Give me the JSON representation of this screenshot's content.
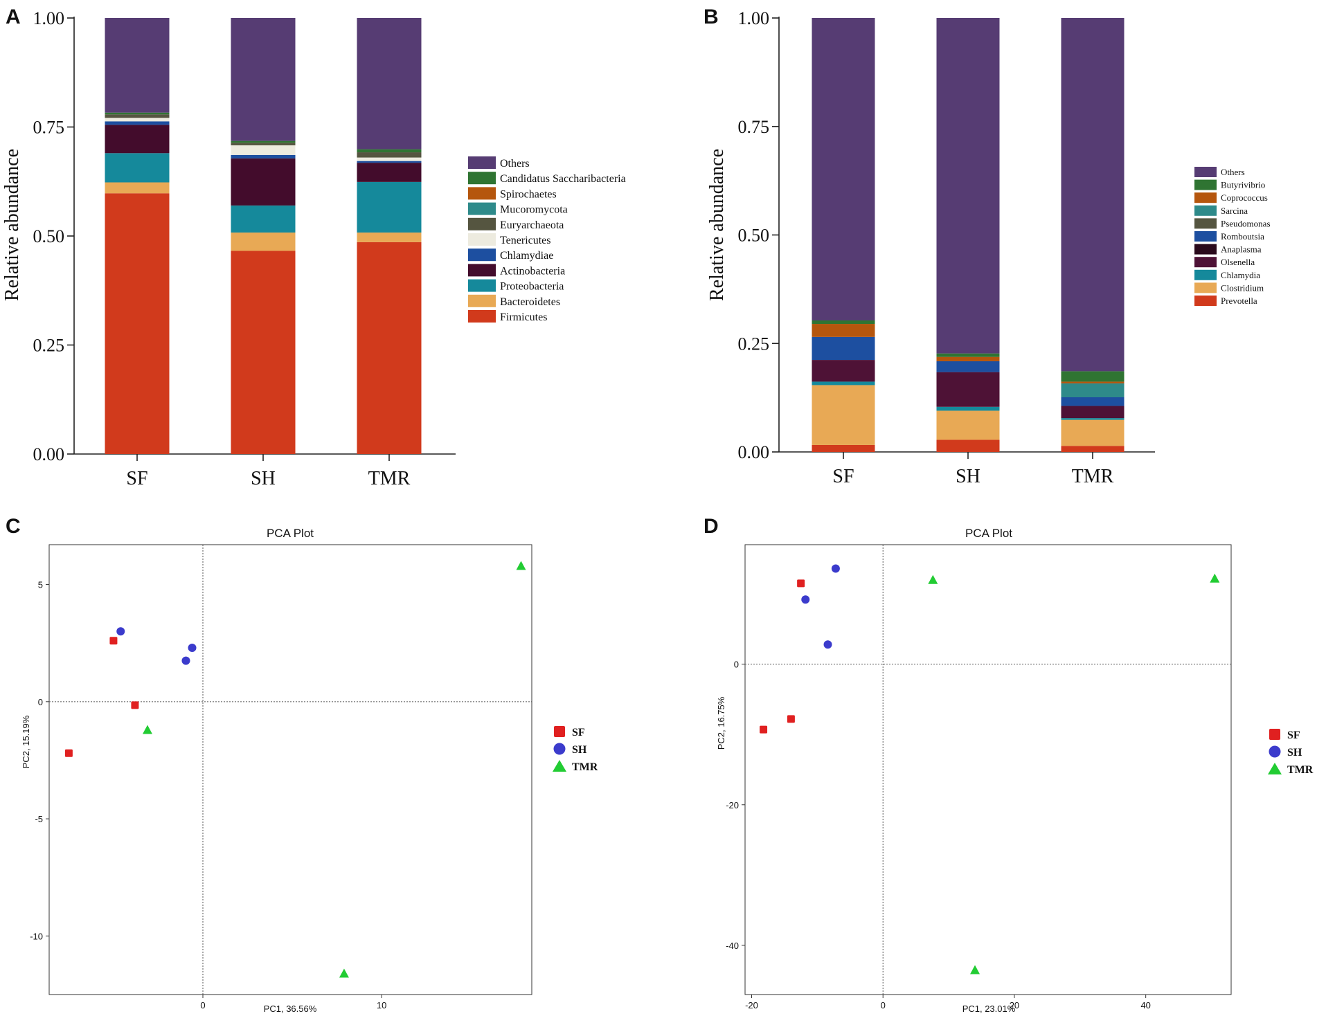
{
  "chart_data": [
    {
      "panel": "A",
      "type": "bar",
      "stacked": true,
      "title": "",
      "xlabel": "",
      "ylabel": "Relative abundance",
      "ylim": [
        0,
        1
      ],
      "yticks": [
        "0.00",
        "0.25",
        "0.50",
        "0.75",
        "1.00"
      ],
      "categories": [
        "SF",
        "SH",
        "TMR"
      ],
      "series": [
        {
          "name": "Firmicutes",
          "color": "#D13A1C",
          "values": [
            0.598,
            0.466,
            0.486
          ]
        },
        {
          "name": "Bacteroidetes",
          "color": "#E8A955",
          "values": [
            0.025,
            0.042,
            0.022
          ]
        },
        {
          "name": "Proteobacteria",
          "color": "#15899B",
          "values": [
            0.067,
            0.062,
            0.116
          ]
        },
        {
          "name": "Actinobacteria",
          "color": "#430C2C",
          "values": [
            0.065,
            0.108,
            0.044
          ]
        },
        {
          "name": "Chlamydiae",
          "color": "#1D4FA0",
          "values": [
            0.008,
            0.008,
            0.004
          ]
        },
        {
          "name": "Tenericutes",
          "color": "#EDEBDF",
          "values": [
            0.008,
            0.022,
            0.008
          ]
        },
        {
          "name": "Euryarchaeota",
          "color": "#555540",
          "values": [
            0.008,
            0.006,
            0.012
          ]
        },
        {
          "name": "Mucoromycota",
          "color": "#2E8A8A",
          "values": [
            0.0,
            0.0,
            0.0
          ]
        },
        {
          "name": "Spirochaetes",
          "color": "#B5560D",
          "values": [
            0.0,
            0.0,
            0.0
          ]
        },
        {
          "name": "Candidatus Saccharibacteria",
          "color": "#2F7432",
          "values": [
            0.004,
            0.004,
            0.007
          ]
        },
        {
          "name": "Others",
          "color": "#563C73",
          "values": [
            0.217,
            0.282,
            0.301
          ]
        }
      ],
      "legend": "right"
    },
    {
      "panel": "B",
      "type": "bar",
      "stacked": true,
      "title": "",
      "xlabel": "",
      "ylabel": "Relative abundance",
      "ylim": [
        0,
        1
      ],
      "yticks": [
        "0.00",
        "0.25",
        "0.50",
        "0.75",
        "1.00"
      ],
      "categories": [
        "SF",
        "SH",
        "TMR"
      ],
      "series": [
        {
          "name": "Prevotella",
          "color": "#D13A1C",
          "values": [
            0.016,
            0.028,
            0.014
          ]
        },
        {
          "name": "Clostridium",
          "color": "#E8A955",
          "values": [
            0.138,
            0.067,
            0.06
          ]
        },
        {
          "name": "Chlamydia",
          "color": "#15899B",
          "values": [
            0.008,
            0.009,
            0.004
          ]
        },
        {
          "name": "Olsenella",
          "color": "#4E1236",
          "values": [
            0.05,
            0.08,
            0.028
          ]
        },
        {
          "name": "Anaplasma",
          "color": "#2A0A1C",
          "values": [
            0.0,
            0.0,
            0.0
          ]
        },
        {
          "name": "Romboutsia",
          "color": "#1D4FA0",
          "values": [
            0.053,
            0.025,
            0.02
          ]
        },
        {
          "name": "Pseudomonas",
          "color": "#555540",
          "values": [
            0.0,
            0.0,
            0.0
          ]
        },
        {
          "name": "Sarcina",
          "color": "#2E8A8A",
          "values": [
            0.0,
            0.0,
            0.032
          ]
        },
        {
          "name": "Coprococcus",
          "color": "#B5560D",
          "values": [
            0.03,
            0.01,
            0.004
          ]
        },
        {
          "name": "Butyrivibrio",
          "color": "#2F7432",
          "values": [
            0.008,
            0.008,
            0.024
          ]
        },
        {
          "name": "Others",
          "color": "#563C73",
          "values": [
            0.697,
            0.773,
            0.814
          ]
        }
      ],
      "legend": "right"
    },
    {
      "panel": "C",
      "type": "scatter",
      "title": "PCA Plot",
      "xlabel": "PC1, 36.56%",
      "ylabel": "PC2, 15.19%",
      "xlim": [
        -8.6,
        18.4
      ],
      "ylim": [
        -12.5,
        6.7
      ],
      "xticks": [
        0,
        10
      ],
      "yticks": [
        5,
        0,
        -5,
        -10
      ],
      "series": [
        {
          "name": "SF",
          "color": "#E02020",
          "marker": "square",
          "points": [
            [
              -5,
              2.6
            ],
            [
              -3.8,
              -0.15
            ],
            [
              -7.5,
              -2.2
            ]
          ]
        },
        {
          "name": "SH",
          "color": "#3B3BCC",
          "marker": "circle",
          "points": [
            [
              -4.6,
              3.0
            ],
            [
              -0.6,
              2.3
            ],
            [
              -0.95,
              1.75
            ]
          ]
        },
        {
          "name": "TMR",
          "color": "#22CC33",
          "marker": "triangle",
          "points": [
            [
              17.8,
              5.8
            ],
            [
              -3.1,
              -1.2
            ],
            [
              7.9,
              -11.6
            ]
          ]
        }
      ],
      "legend": "right"
    },
    {
      "panel": "D",
      "type": "scatter",
      "title": "PCA Plot",
      "xlabel": "PC1, 23.01%",
      "ylabel": "PC2, 16.75%",
      "xlim": [
        -21,
        53
      ],
      "ylim": [
        -47,
        17
      ],
      "xticks": [
        -20,
        0,
        20,
        40
      ],
      "yticks": [
        0,
        -20,
        -40
      ],
      "series": [
        {
          "name": "SF",
          "color": "#E02020",
          "marker": "square",
          "points": [
            [
              -12.5,
              11.5
            ],
            [
              -14,
              -7.8
            ],
            [
              -18.2,
              -9.3
            ]
          ]
        },
        {
          "name": "SH",
          "color": "#3B3BCC",
          "marker": "circle",
          "points": [
            [
              -7.2,
              13.6
            ],
            [
              -11.8,
              9.2
            ],
            [
              -8.4,
              2.8
            ]
          ]
        },
        {
          "name": "TMR",
          "color": "#22CC33",
          "marker": "triangle",
          "points": [
            [
              7.6,
              12.0
            ],
            [
              50.5,
              12.2
            ],
            [
              14,
              -43.5
            ]
          ]
        }
      ],
      "legend": "right"
    }
  ]
}
